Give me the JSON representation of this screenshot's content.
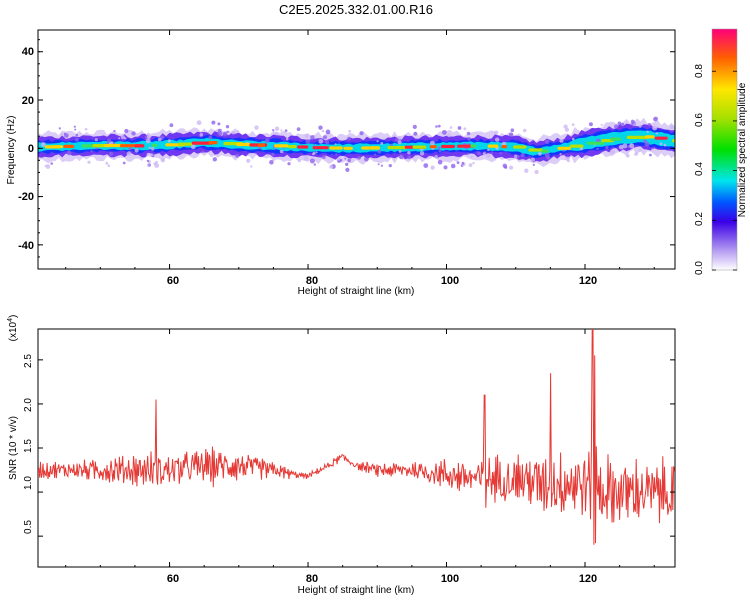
{
  "title": "C2E5.2025.332.01.00.R16",
  "chart_data": [
    {
      "type": "heatmap",
      "xlabel": "Height of straight line (km)",
      "ylabel": "Frequency (Hz)",
      "xlim": [
        41,
        133
      ],
      "ylim": [
        -50,
        49
      ],
      "xticks": [
        "60",
        "80",
        "100",
        "120"
      ],
      "yticks": [
        "40",
        "20",
        "0",
        "-20",
        "-40"
      ],
      "colorbar": {
        "label": "Normalized spectral amplitude",
        "range": [
          0,
          0.97
        ],
        "ticks": [
          "0.0",
          "0.2",
          "0.4",
          "0.6",
          "0.8"
        ]
      },
      "band_center_hz": [
        [
          41,
          0.5
        ],
        [
          50,
          1.2
        ],
        [
          55,
          1.0
        ],
        [
          60,
          1.5
        ],
        [
          65,
          2.5
        ],
        [
          70,
          1.5
        ],
        [
          75,
          1.0
        ],
        [
          80,
          0.3
        ],
        [
          85,
          0.0
        ],
        [
          90,
          0.2
        ],
        [
          95,
          0.5
        ],
        [
          100,
          0.8
        ],
        [
          105,
          1.0
        ],
        [
          110,
          0.5
        ],
        [
          113,
          -1.5
        ],
        [
          116,
          0.0
        ],
        [
          120,
          2.0
        ],
        [
          124,
          4.0
        ],
        [
          128,
          5.0
        ],
        [
          133,
          3.0
        ]
      ]
    },
    {
      "type": "line",
      "xlabel": "Height of straight line (km)",
      "ylabel": "SNR (10 * v/v)",
      "exponent_label": "(x10",
      "exponent_power": "4",
      "xlim": [
        41,
        133
      ],
      "ylim": [
        0.15,
        2.85
      ],
      "xticks": [
        "60",
        "80",
        "100",
        "120"
      ],
      "yticks": [
        "0.5",
        "1.0",
        "1.5",
        "2.0",
        "2.5"
      ],
      "color": "#e53935",
      "envelope": [
        [
          41,
          1.25,
          0.18
        ],
        [
          47,
          1.25,
          0.2
        ],
        [
          52,
          1.25,
          0.35
        ],
        [
          60,
          1.25,
          0.4
        ],
        [
          65,
          1.3,
          0.4
        ],
        [
          70,
          1.3,
          0.35
        ],
        [
          75,
          1.25,
          0.2
        ],
        [
          78,
          1.2,
          0.08
        ],
        [
          80,
          1.18,
          0.05
        ],
        [
          83,
          1.3,
          0.08
        ],
        [
          85,
          1.4,
          0.1
        ],
        [
          87,
          1.3,
          0.08
        ],
        [
          90,
          1.25,
          0.15
        ],
        [
          95,
          1.25,
          0.2
        ],
        [
          100,
          1.2,
          0.35
        ],
        [
          105,
          1.15,
          0.45
        ],
        [
          110,
          1.15,
          0.55
        ],
        [
          115,
          1.1,
          0.7
        ],
        [
          120,
          1.1,
          0.85
        ],
        [
          123,
          1.0,
          0.8
        ],
        [
          128,
          1.0,
          0.7
        ],
        [
          133,
          1.0,
          0.7
        ]
      ],
      "peaks": [
        [
          121.1,
          2.85
        ],
        [
          121.4,
          2.55
        ],
        [
          115,
          2.35
        ],
        [
          105.5,
          2.1
        ],
        [
          58,
          2.05
        ]
      ]
    }
  ]
}
